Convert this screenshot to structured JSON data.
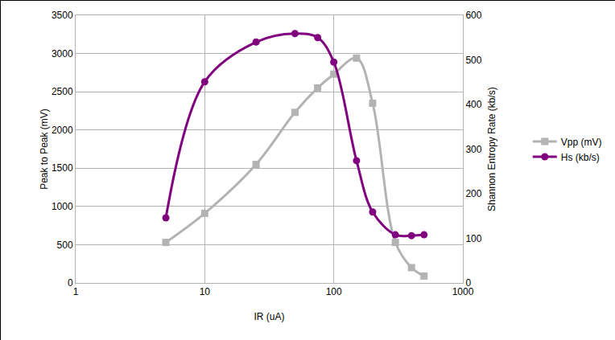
{
  "chart_data": {
    "type": "line",
    "x_label": "IR (uA)",
    "y_label": "Peak to Peak (mV)",
    "y2_label": "Shannon Entropy Rate (kb/s)",
    "log": "x",
    "grid": true,
    "legend": "right",
    "x": [
      5,
      10,
      25,
      50,
      75,
      100,
      150,
      200,
      300,
      400,
      500
    ],
    "xlim": [
      1,
      1000
    ],
    "xticks": [
      1,
      10,
      100,
      1000
    ],
    "ylim": [
      0,
      3500
    ],
    "yticks": [
      0,
      500,
      1000,
      1500,
      2000,
      2500,
      3000,
      3500
    ],
    "y2lim": [
      0,
      600
    ],
    "y2ticks": [
      0,
      100,
      200,
      300,
      400,
      500,
      600
    ],
    "series": [
      {
        "name": "Vpp (mV)",
        "color": "#b3b3b3",
        "marker": "square",
        "line_style": "smooth",
        "values": [
          530,
          910,
          1550,
          2230,
          2550,
          2730,
          2940,
          2350,
          530,
          200,
          90
        ]
      },
      {
        "name": "Hs (kb/s)",
        "color": "#800080",
        "marker": "circle",
        "line_style": "smooth",
        "axis": "y2",
        "values": [
          146,
          451,
          540,
          559,
          550,
          495,
          274,
          159,
          108,
          106,
          108
        ]
      }
    ]
  }
}
